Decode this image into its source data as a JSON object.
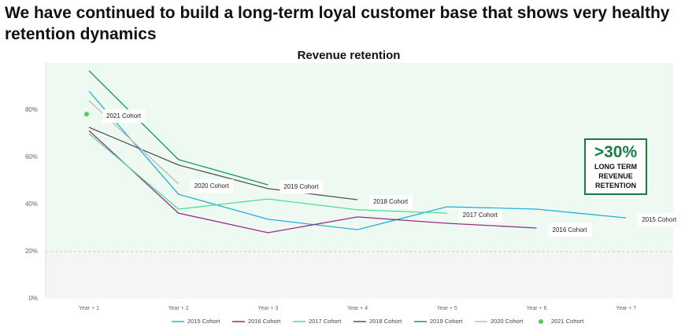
{
  "heading": "We have continued to build a long-term loyal customer base that shows very healthy retention dynamics",
  "chart_data": {
    "type": "line",
    "title": "Revenue retention",
    "categories": [
      "Year + 1",
      "Year + 2",
      "Year + 3",
      "Year + 4",
      "Year + 5",
      "Year + 6",
      "Year + 7"
    ],
    "ylim": [
      0,
      100
    ],
    "yticks": [
      {
        "value": 0,
        "label": "0%"
      },
      {
        "value": 20,
        "label": "20%"
      },
      {
        "value": 40,
        "label": "40%"
      },
      {
        "value": 60,
        "label": "60%"
      },
      {
        "value": 80,
        "label": "80%"
      }
    ],
    "series": [
      {
        "name": "2015 Cohort",
        "color": "#1fb0d8",
        "values": [
          88,
          44.3,
          33.7,
          29.3,
          39,
          38,
          34.3
        ]
      },
      {
        "name": "2016 Cohort",
        "color": "#9b2a8a",
        "values": [
          71.3,
          36.3,
          28,
          34.7,
          32,
          30,
          null
        ]
      },
      {
        "name": "2017 Cohort",
        "color": "#4ddb9a",
        "values": [
          70,
          38,
          42.3,
          37.7,
          36.3,
          null,
          null
        ]
      },
      {
        "name": "2018 Cohort",
        "color": "#555555",
        "values": [
          72.7,
          56.7,
          46.7,
          42,
          null,
          null,
          null
        ]
      },
      {
        "name": "2019 Cohort",
        "color": "#1a9850",
        "values": [
          96.7,
          59,
          48.3,
          null,
          null,
          null,
          null
        ]
      },
      {
        "name": "2020 Cohort",
        "color": "#bbbbbb",
        "values": [
          84,
          48.7,
          null,
          null,
          null,
          null,
          null
        ]
      },
      {
        "name": "2021 Cohort",
        "color": "#55c955",
        "marker": true,
        "values": [
          78.3,
          null,
          null,
          null,
          null,
          null,
          null
        ]
      }
    ],
    "callout": {
      "value": ">30%",
      "text": "LONG TERM REVENUE RETENTION"
    }
  }
}
